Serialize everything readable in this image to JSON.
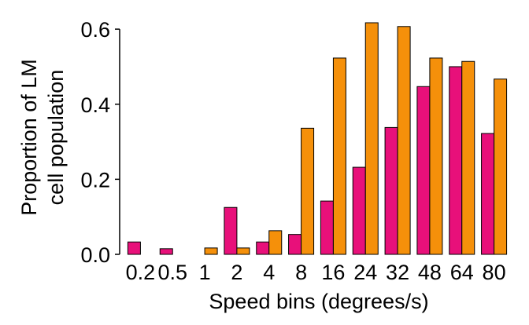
{
  "chart_data": {
    "type": "bar",
    "categories": [
      "0.2",
      "0.5",
      "1",
      "2",
      "4",
      "8",
      "16",
      "24",
      "32",
      "48",
      "64",
      "80"
    ],
    "series": [
      {
        "values": [
          0.033,
          0.015,
          0.0,
          0.125,
          0.033,
          0.053,
          0.142,
          0.232,
          0.338,
          0.447,
          0.5,
          0.322
        ]
      },
      {
        "values": [
          0.0,
          0.0,
          0.017,
          0.017,
          0.063,
          0.336,
          0.523,
          0.617,
          0.607,
          0.523,
          0.514,
          0.467
        ]
      }
    ],
    "colors": [
      "#e8107a",
      "#f5900a"
    ],
    "xlabel": "Speed bins (degrees/s)",
    "ylabel_lines": [
      "Proportion of LM",
      "cell population"
    ],
    "ylim": [
      0,
      0.64
    ],
    "yticks": [
      0.0,
      0.2,
      0.4,
      0.6
    ],
    "ytick_labels": [
      "0.0",
      "0.2",
      "0.4",
      "0.6"
    ],
    "grid": false,
    "legend": "none"
  }
}
